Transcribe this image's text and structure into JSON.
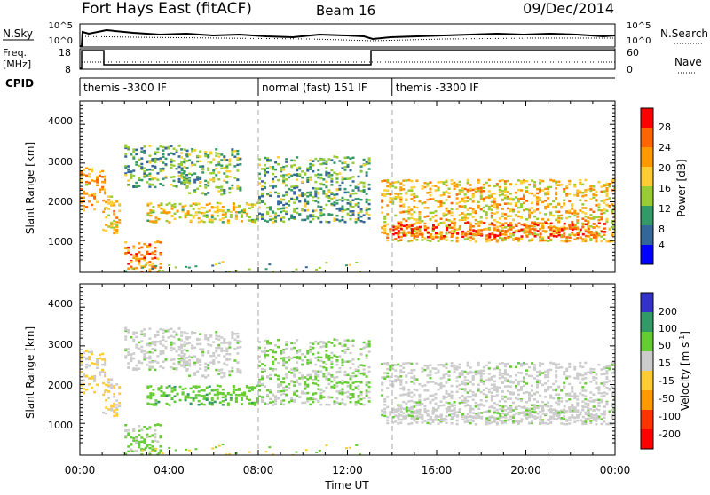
{
  "header": {
    "station": "Fort Hays East (fitACF)",
    "beam": "Beam 16",
    "date": "09/Dec/2014"
  },
  "nsky_panel": {
    "left_label": "N.Sky",
    "right_label": "N.Search",
    "left_ticks": [
      "10^5",
      "10^0"
    ],
    "right_ticks": [
      "10^5",
      "10^0"
    ]
  },
  "freq_panel": {
    "left_label_line1": "Freq.",
    "left_label_line2": "[MHz]",
    "right_label": "Nave",
    "left_ticks": [
      "18",
      "8"
    ],
    "right_ticks": [
      "60",
      "0"
    ]
  },
  "cpid": {
    "label": "CPID",
    "segments": [
      {
        "label": "themis -3300 IF",
        "start_h": 0,
        "end_h": 8
      },
      {
        "label": "normal (fast) 151 IF",
        "start_h": 8,
        "end_h": 14
      },
      {
        "label": "themis -3300 IF",
        "start_h": 14,
        "end_h": 24
      }
    ]
  },
  "power_panel": {
    "ylabel": "Slant Range [km]",
    "yticks": [
      "4000",
      "3000",
      "2000",
      "1000"
    ],
    "colorbar_title": "Power [dB]",
    "colorbar_ticks": [
      "28",
      "24",
      "20",
      "16",
      "12",
      "8",
      "4"
    ],
    "colors": [
      "#ff0000",
      "#ff6600",
      "#ff9900",
      "#ffcc33",
      "#99cc33",
      "#339966",
      "#336699",
      "#0000ff"
    ]
  },
  "velocity_panel": {
    "ylabel": "Slant Range [km]",
    "yticks": [
      "4000",
      "3000",
      "2000",
      "1000"
    ],
    "colorbar_title": "Velocity [m s",
    "colorbar_title_sup": "-1",
    "colorbar_title_end": "]",
    "colorbar_ticks": [
      "200",
      "100",
      "50",
      "15",
      "-15",
      "-50",
      "-100",
      "-200"
    ],
    "colors": [
      "#3333cc",
      "#339966",
      "#66cc33",
      "#cccccc",
      "#ffcc33",
      "#ff9900",
      "#ff3300",
      "#ff0000"
    ]
  },
  "xaxis": {
    "title": "Time UT",
    "ticks": [
      "00:00",
      "04:00",
      "08:00",
      "12:00",
      "16:00",
      "20:00",
      "00:00"
    ]
  },
  "chart_data": {
    "type": "heatmap",
    "x_range_hours": [
      0,
      24
    ],
    "y_range_km": [
      180,
      4600
    ],
    "power_db_range": [
      0,
      30
    ],
    "velocity_range": [
      -200,
      200
    ],
    "freq_mhz": [
      {
        "start_h": 0,
        "end_h": 1,
        "value": 18
      },
      {
        "start_h": 1,
        "end_h": 13,
        "value": 10
      },
      {
        "start_h": 13,
        "end_h": 24,
        "value": 18
      }
    ],
    "regions": [
      {
        "t": [
          0,
          1.2
        ],
        "r": [
          1800,
          2900
        ],
        "power_db": 20,
        "velocity": -15
      },
      {
        "t": [
          1.0,
          1.8
        ],
        "r": [
          1200,
          2200
        ],
        "power_db": 18,
        "velocity": -15
      },
      {
        "t": [
          2.0,
          4.8
        ],
        "r": [
          2400,
          3500
        ],
        "power_db": 10,
        "velocity": 15
      },
      {
        "t": [
          4.5,
          7.2
        ],
        "r": [
          2200,
          3400
        ],
        "power_db": 12,
        "velocity": 15
      },
      {
        "t": [
          3.0,
          8.0
        ],
        "r": [
          1500,
          2000
        ],
        "power_db": 16,
        "velocity": 60
      },
      {
        "t": [
          2.0,
          3.6
        ],
        "r": [
          200,
          1000
        ],
        "power_db": 22,
        "velocity": 40
      },
      {
        "t": [
          8.0,
          13.0
        ],
        "r": [
          1500,
          3200
        ],
        "power_db": 10,
        "velocity": 30
      },
      {
        "t": [
          13.5,
          24.0
        ],
        "r": [
          1000,
          2600
        ],
        "power_db": 18,
        "velocity": 15
      },
      {
        "t": [
          14.0,
          23.5
        ],
        "r": [
          1100,
          1500
        ],
        "power_db": 26,
        "velocity": 15
      }
    ]
  }
}
